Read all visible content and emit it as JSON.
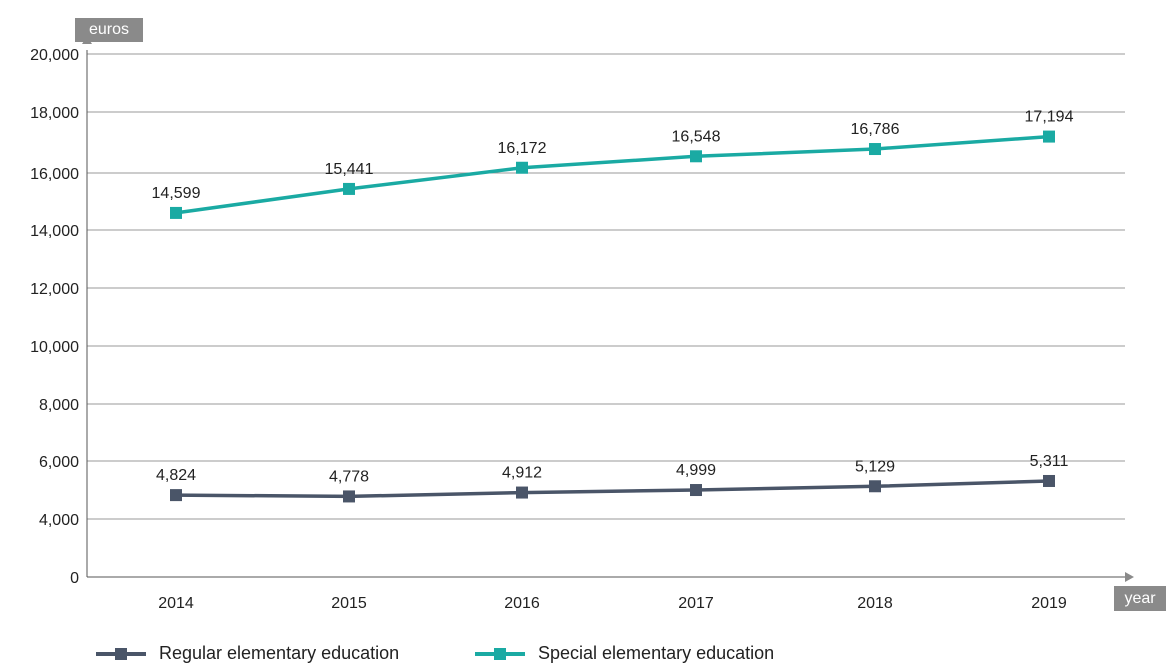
{
  "chart_data": {
    "type": "line",
    "y_axis_tag": "euros",
    "x_axis_tag": "year",
    "categories": [
      "2014",
      "2015",
      "2016",
      "2017",
      "2018",
      "2019"
    ],
    "yticks": [
      {
        "value": 0,
        "label": "0"
      },
      {
        "value": 4000,
        "label": "4,000"
      },
      {
        "value": 6000,
        "label": "6,000"
      },
      {
        "value": 8000,
        "label": "8,000"
      },
      {
        "value": 10000,
        "label": "10,000"
      },
      {
        "value": 12000,
        "label": "12,000"
      },
      {
        "value": 14000,
        "label": "14,000"
      },
      {
        "value": 16000,
        "label": "16,000"
      },
      {
        "value": 18000,
        "label": "18,000"
      },
      {
        "value": 20000,
        "label": "20,000"
      }
    ],
    "ylim": [
      0,
      20000
    ],
    "grid": true,
    "legend_position": "bottom",
    "series": [
      {
        "name": "Regular elementary education",
        "color": "#4a5568",
        "values": [
          4824,
          4778,
          4912,
          4999,
          5129,
          5311
        ],
        "labels": [
          "4,824",
          "4,778",
          "4,912",
          "4,999",
          "5,129",
          "5,311"
        ]
      },
      {
        "name": "Special elementary education",
        "color": "#1aaaa3",
        "values": [
          14599,
          15441,
          16172,
          16548,
          16786,
          17194
        ],
        "labels": [
          "14,599",
          "15,441",
          "16,172",
          "16,548",
          "16,786",
          "17,194"
        ]
      }
    ]
  }
}
